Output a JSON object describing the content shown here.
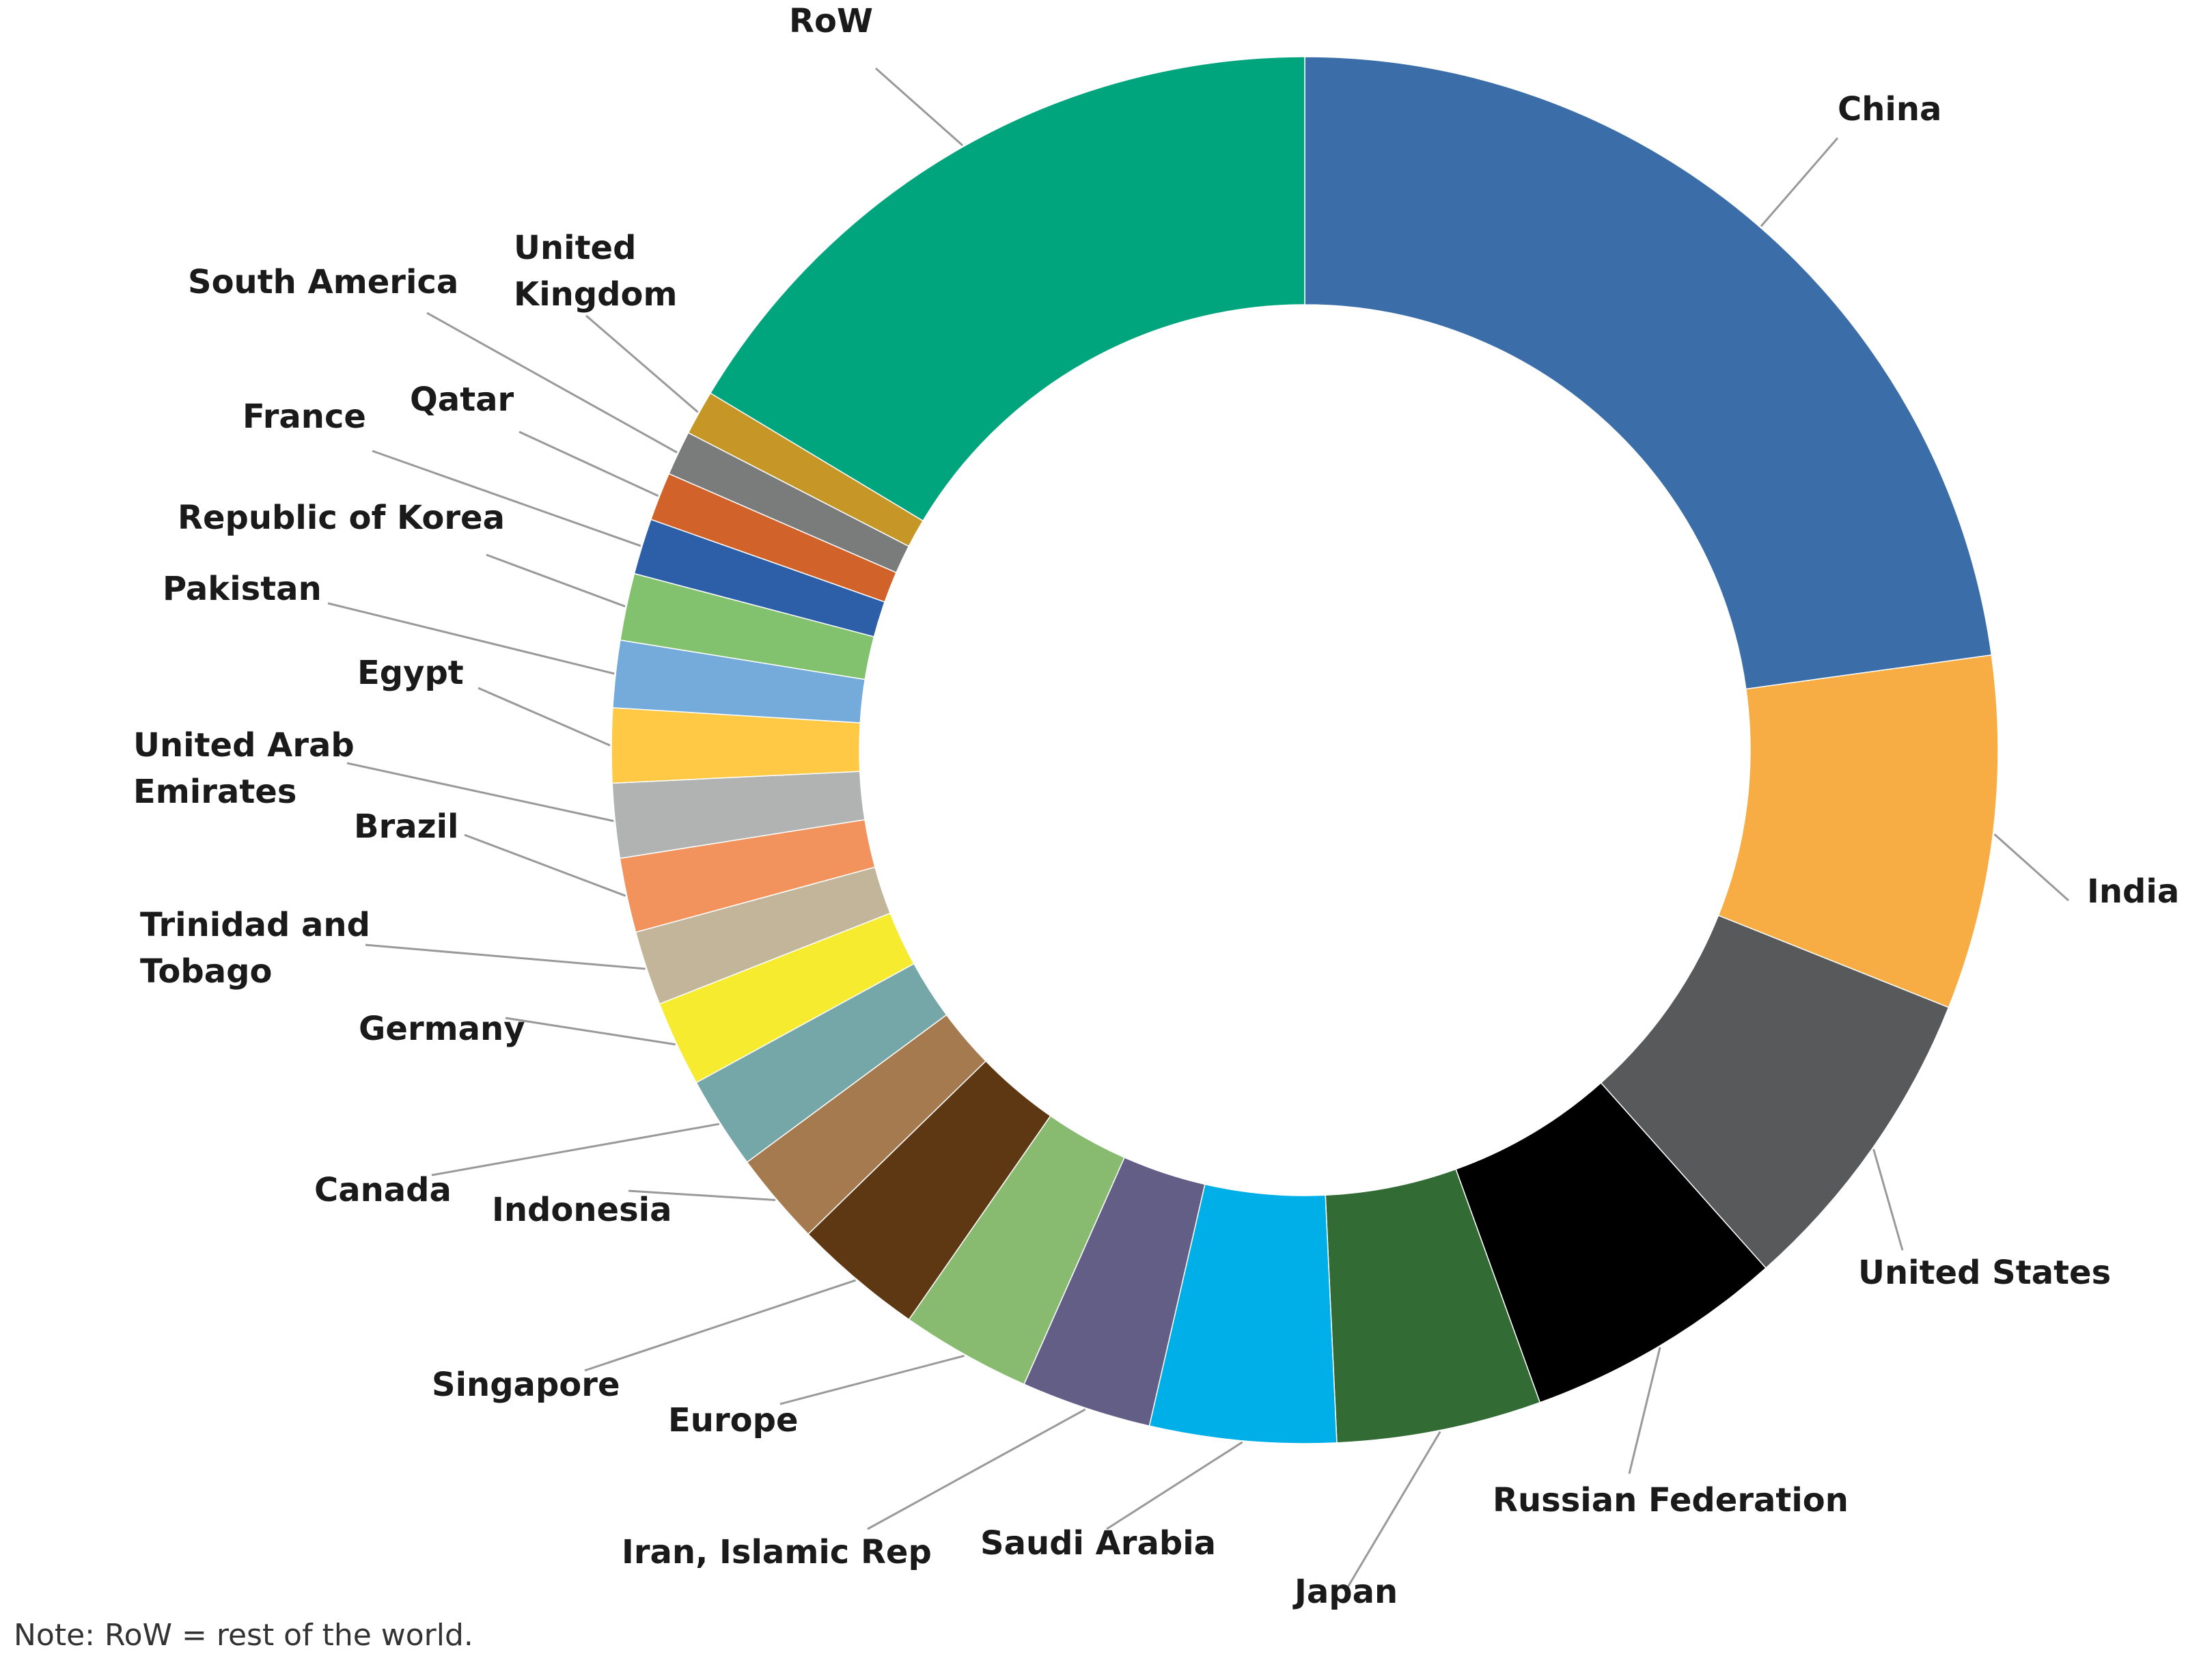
{
  "chart_data": {
    "type": "pie",
    "title": "",
    "donut": true,
    "slices": [
      {
        "label": "China",
        "value": 26.3,
        "color": "#3b6ea8"
      },
      {
        "label": "India",
        "value": 9.5,
        "color": "#f7ad43"
      },
      {
        "label": "United States",
        "value": 8.5,
        "color": "#58595b"
      },
      {
        "label": "Russian Federation",
        "value": 7.0,
        "color": "#000000"
      },
      {
        "label": "Japan",
        "value": 5.5,
        "color": "#336b35"
      },
      {
        "label": "Saudi Arabia",
        "value": 5.0,
        "color": "#00aee8"
      },
      {
        "label": "Iran, Islamic Rep",
        "value": 3.5,
        "color": "#635e86"
      },
      {
        "label": "Europe",
        "value": 3.5,
        "color": "#88ba70"
      },
      {
        "label": "Singapore",
        "value": 3.5,
        "color": "#5e3812"
      },
      {
        "label": "Indonesia",
        "value": 2.5,
        "color": "#a57a4e"
      },
      {
        "label": "Canada",
        "value": 2.5,
        "color": "#76a7a8"
      },
      {
        "label": "Germany",
        "value": 2.3,
        "color": "#f6eb2f"
      },
      {
        "label": "Trinidad and\nTobago",
        "value": 2.0,
        "color": "#c3b59a"
      },
      {
        "label": "Brazil",
        "value": 2.0,
        "color": "#f2935d"
      },
      {
        "label": "United Arab\nEmirates",
        "value": 2.0,
        "color": "#b1b2b2"
      },
      {
        "label": "Egypt",
        "value": 2.0,
        "color": "#ffc845"
      },
      {
        "label": "Pakistan",
        "value": 1.8,
        "color": "#74abdb"
      },
      {
        "label": "Republic of Korea",
        "value": 1.8,
        "color": "#82c26f"
      },
      {
        "label": "France",
        "value": 1.5,
        "color": "#2d5fa8"
      },
      {
        "label": "Qatar",
        "value": 1.3,
        "color": "#d1622a"
      },
      {
        "label": "South America",
        "value": 1.2,
        "color": "#7a7b7b"
      },
      {
        "label": "United\nKingdom",
        "value": 1.2,
        "color": "#c69627"
      },
      {
        "label": "RoW",
        "value": 18.9,
        "color": "#00a57e"
      }
    ]
  },
  "note": "Note: RoW = rest of the world."
}
